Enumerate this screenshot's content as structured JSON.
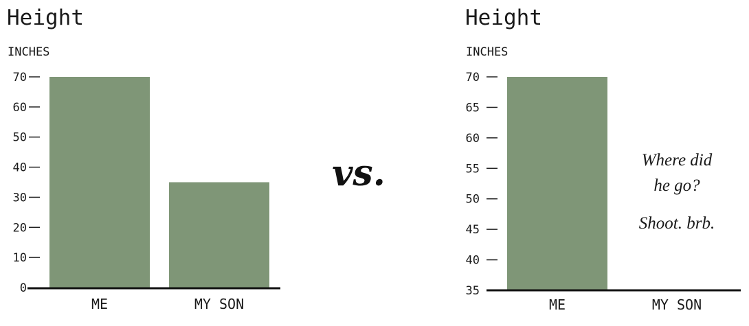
{
  "separator": "vs.",
  "chart_data": [
    {
      "type": "bar",
      "title": "Height",
      "ylabel": "INCHES",
      "categories": [
        "ME",
        "MY SON"
      ],
      "values": [
        70,
        35
      ],
      "ylim": [
        0,
        70
      ],
      "yticks": [
        0,
        10,
        20,
        30,
        40,
        50,
        60,
        70
      ],
      "bar_color": "#7f9677"
    },
    {
      "type": "bar",
      "title": "Height",
      "ylabel": "INCHES",
      "categories": [
        "ME",
        "MY SON"
      ],
      "values": [
        70,
        35
      ],
      "ylim": [
        35,
        70
      ],
      "yticks": [
        35,
        40,
        45,
        50,
        55,
        60,
        65,
        70
      ],
      "bar_color": "#7f9677",
      "annotation": [
        "Where did",
        "he go?",
        "Shoot. brb."
      ]
    }
  ]
}
